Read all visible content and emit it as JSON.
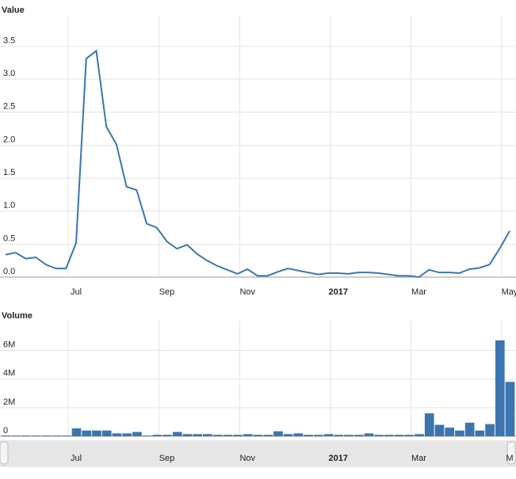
{
  "chart_data": [
    {
      "type": "line",
      "title": "Value",
      "color": "#3b75af",
      "categories": [
        null,
        null,
        null,
        null,
        null,
        null,
        null,
        "Jul",
        null,
        null,
        null,
        null,
        null,
        null,
        null,
        null,
        "Sep",
        null,
        null,
        null,
        null,
        null,
        null,
        null,
        "Nov",
        null,
        null,
        null,
        null,
        null,
        null,
        null,
        null,
        "2017",
        null,
        null,
        null,
        null,
        null,
        null,
        null,
        "Mar",
        null,
        null,
        null,
        null,
        null,
        null,
        null,
        null,
        "May"
      ],
      "values": [
        0.34,
        0.37,
        0.28,
        0.3,
        0.19,
        0.13,
        0.13,
        0.52,
        3.31,
        3.43,
        2.28,
        2.01,
        1.37,
        1.32,
        0.81,
        0.75,
        0.54,
        0.43,
        0.49,
        0.35,
        0.25,
        0.17,
        0.11,
        0.05,
        0.12,
        0.02,
        0.02,
        0.08,
        0.13,
        0.1,
        0.07,
        0.04,
        0.06,
        0.06,
        0.05,
        0.07,
        0.07,
        0.06,
        0.04,
        0.02,
        0.02,
        0.0,
        0.11,
        0.07,
        0.07,
        0.06,
        0.12,
        0.14,
        0.19,
        0.43,
        0.7
      ],
      "ylim": [
        0,
        3.9
      ],
      "yticks": [
        {
          "value": 0,
          "label": "0.0"
        },
        {
          "value": 0.5,
          "label": "0.5"
        },
        {
          "value": 1,
          "label": "1.0"
        },
        {
          "value": 1.5,
          "label": "1.5"
        },
        {
          "value": 2,
          "label": "2.0"
        },
        {
          "value": 2.5,
          "label": "2.5"
        },
        {
          "value": 3,
          "label": "3.0"
        },
        {
          "value": 3.5,
          "label": "3.5"
        }
      ],
      "grid": true
    },
    {
      "type": "bar",
      "title": "Volume",
      "color": "#3b75af",
      "categories": [
        null,
        null,
        null,
        null,
        null,
        null,
        null,
        "Jul",
        null,
        null,
        null,
        null,
        null,
        null,
        null,
        null,
        "Sep",
        null,
        null,
        null,
        null,
        null,
        null,
        null,
        "Nov",
        null,
        null,
        null,
        null,
        null,
        null,
        null,
        null,
        "2017",
        null,
        null,
        null,
        null,
        null,
        null,
        null,
        "Mar",
        null,
        null,
        null,
        null,
        null,
        null,
        null,
        null,
        "M"
      ],
      "values": [
        50000,
        50000,
        50000,
        50000,
        50000,
        50000,
        50000,
        550000,
        400000,
        400000,
        400000,
        200000,
        200000,
        300000,
        50000,
        100000,
        100000,
        300000,
        150000,
        150000,
        150000,
        100000,
        100000,
        100000,
        150000,
        100000,
        100000,
        350000,
        150000,
        200000,
        100000,
        100000,
        150000,
        100000,
        100000,
        100000,
        200000,
        100000,
        100000,
        100000,
        100000,
        150000,
        1600000,
        800000,
        600000,
        400000,
        950000,
        400000,
        850000,
        6700000,
        3800000
      ],
      "ylim": [
        0,
        7800000
      ],
      "yticks": [
        {
          "value": 0,
          "label": "0"
        },
        {
          "value": 2000000,
          "label": "2M"
        },
        {
          "value": 4000000,
          "label": "4M"
        },
        {
          "value": 6000000,
          "label": "6M"
        }
      ],
      "grid": true
    }
  ]
}
